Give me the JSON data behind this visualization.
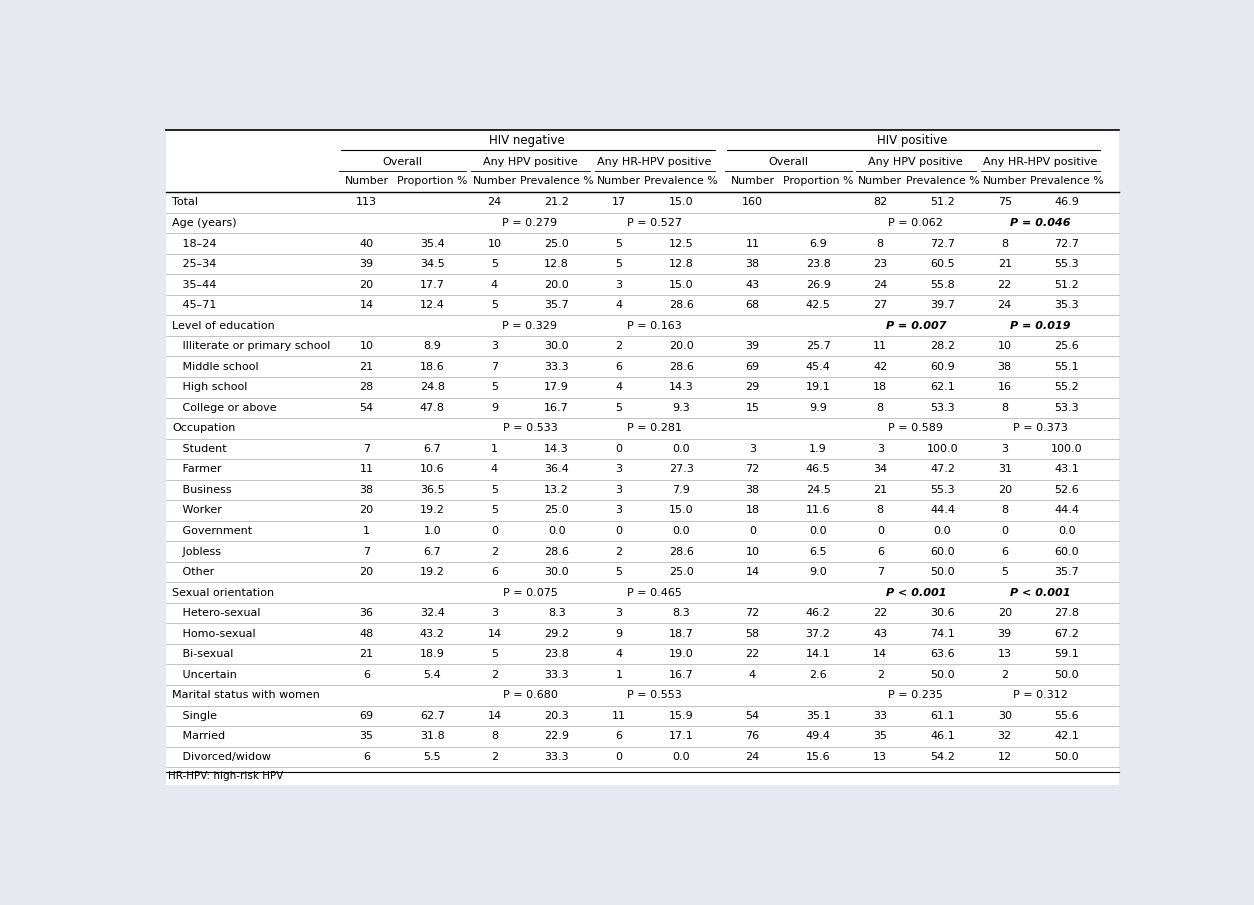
{
  "bg_color": "#e8e8f0",
  "title_hiv_neg": "HIV negative",
  "title_hiv_pos": "HIV positive",
  "col_headers": [
    "Number",
    "Proportion %",
    "Number",
    "Prevalence %",
    "Number",
    "Prevalence %",
    "Number",
    "Proportion %",
    "Number",
    "Prevalence %",
    "Number",
    "Prevalence %"
  ],
  "rows": [
    {
      "label": "Total",
      "is_section": false,
      "values": [
        "113",
        "",
        "24",
        "21.2",
        "17",
        "15.0",
        "160",
        "",
        "82",
        "51.2",
        "75",
        "46.9"
      ],
      "pval_cols": [],
      "pval_bold": []
    },
    {
      "label": "Age (years)",
      "is_section": true,
      "values": [
        "",
        "",
        "P = 0.279",
        "",
        "P = 0.527",
        "",
        "",
        "",
        "P = 0.062",
        "",
        "P = 0.046",
        ""
      ],
      "pval_cols": [
        2,
        4,
        8,
        10
      ],
      "pval_bold": [
        false,
        false,
        false,
        true
      ]
    },
    {
      "label": "   18–24",
      "is_section": false,
      "values": [
        "40",
        "35.4",
        "10",
        "25.0",
        "5",
        "12.5",
        "11",
        "6.9",
        "8",
        "72.7",
        "8",
        "72.7"
      ],
      "pval_cols": [],
      "pval_bold": []
    },
    {
      "label": "   25–34",
      "is_section": false,
      "values": [
        "39",
        "34.5",
        "5",
        "12.8",
        "5",
        "12.8",
        "38",
        "23.8",
        "23",
        "60.5",
        "21",
        "55.3"
      ],
      "pval_cols": [],
      "pval_bold": []
    },
    {
      "label": "   35–44",
      "is_section": false,
      "values": [
        "20",
        "17.7",
        "4",
        "20.0",
        "3",
        "15.0",
        "43",
        "26.9",
        "24",
        "55.8",
        "22",
        "51.2"
      ],
      "pval_cols": [],
      "pval_bold": []
    },
    {
      "label": "   45–71",
      "is_section": false,
      "values": [
        "14",
        "12.4",
        "5",
        "35.7",
        "4",
        "28.6",
        "68",
        "42.5",
        "27",
        "39.7",
        "24",
        "35.3"
      ],
      "pval_cols": [],
      "pval_bold": []
    },
    {
      "label": "Level of education",
      "is_section": true,
      "values": [
        "",
        "",
        "P = 0.329",
        "",
        "P = 0.163",
        "",
        "",
        "",
        "P = 0.007",
        "",
        "P = 0.019",
        ""
      ],
      "pval_cols": [
        2,
        4,
        8,
        10
      ],
      "pval_bold": [
        false,
        false,
        true,
        true
      ]
    },
    {
      "label": "   Illiterate or primary school",
      "is_section": false,
      "values": [
        "10",
        "8.9",
        "3",
        "30.0",
        "2",
        "20.0",
        "39",
        "25.7",
        "11",
        "28.2",
        "10",
        "25.6"
      ],
      "pval_cols": [],
      "pval_bold": []
    },
    {
      "label": "   Middle school",
      "is_section": false,
      "values": [
        "21",
        "18.6",
        "7",
        "33.3",
        "6",
        "28.6",
        "69",
        "45.4",
        "42",
        "60.9",
        "38",
        "55.1"
      ],
      "pval_cols": [],
      "pval_bold": []
    },
    {
      "label": "   High school",
      "is_section": false,
      "values": [
        "28",
        "24.8",
        "5",
        "17.9",
        "4",
        "14.3",
        "29",
        "19.1",
        "18",
        "62.1",
        "16",
        "55.2"
      ],
      "pval_cols": [],
      "pval_bold": []
    },
    {
      "label": "   College or above",
      "is_section": false,
      "values": [
        "54",
        "47.8",
        "9",
        "16.7",
        "5",
        "9.3",
        "15",
        "9.9",
        "8",
        "53.3",
        "8",
        "53.3"
      ],
      "pval_cols": [],
      "pval_bold": []
    },
    {
      "label": "Occupation",
      "is_section": true,
      "values": [
        "",
        "",
        "P = 0.533",
        "",
        "P = 0.281",
        "",
        "",
        "",
        "P = 0.589",
        "",
        "P = 0.373",
        ""
      ],
      "pval_cols": [
        2,
        4,
        8,
        10
      ],
      "pval_bold": [
        false,
        false,
        false,
        false
      ]
    },
    {
      "label": "   Student",
      "is_section": false,
      "values": [
        "7",
        "6.7",
        "1",
        "14.3",
        "0",
        "0.0",
        "3",
        "1.9",
        "3",
        "100.0",
        "3",
        "100.0"
      ],
      "pval_cols": [],
      "pval_bold": []
    },
    {
      "label": "   Farmer",
      "is_section": false,
      "values": [
        "11",
        "10.6",
        "4",
        "36.4",
        "3",
        "27.3",
        "72",
        "46.5",
        "34",
        "47.2",
        "31",
        "43.1"
      ],
      "pval_cols": [],
      "pval_bold": []
    },
    {
      "label": "   Business",
      "is_section": false,
      "values": [
        "38",
        "36.5",
        "5",
        "13.2",
        "3",
        "7.9",
        "38",
        "24.5",
        "21",
        "55.3",
        "20",
        "52.6"
      ],
      "pval_cols": [],
      "pval_bold": []
    },
    {
      "label": "   Worker",
      "is_section": false,
      "values": [
        "20",
        "19.2",
        "5",
        "25.0",
        "3",
        "15.0",
        "18",
        "11.6",
        "8",
        "44.4",
        "8",
        "44.4"
      ],
      "pval_cols": [],
      "pval_bold": []
    },
    {
      "label": "   Government",
      "is_section": false,
      "values": [
        "1",
        "1.0",
        "0",
        "0.0",
        "0",
        "0.0",
        "0",
        "0.0",
        "0",
        "0.0",
        "0",
        "0.0"
      ],
      "pval_cols": [],
      "pval_bold": []
    },
    {
      "label": "   Jobless",
      "is_section": false,
      "values": [
        "7",
        "6.7",
        "2",
        "28.6",
        "2",
        "28.6",
        "10",
        "6.5",
        "6",
        "60.0",
        "6",
        "60.0"
      ],
      "pval_cols": [],
      "pval_bold": []
    },
    {
      "label": "   Other",
      "is_section": false,
      "values": [
        "20",
        "19.2",
        "6",
        "30.0",
        "5",
        "25.0",
        "14",
        "9.0",
        "7",
        "50.0",
        "5",
        "35.7"
      ],
      "pval_cols": [],
      "pval_bold": []
    },
    {
      "label": "Sexual orientation",
      "is_section": true,
      "values": [
        "",
        "",
        "P = 0.075",
        "",
        "P = 0.465",
        "",
        "",
        "",
        "P < 0.001",
        "",
        "P < 0.001",
        ""
      ],
      "pval_cols": [
        2,
        4,
        8,
        10
      ],
      "pval_bold": [
        false,
        false,
        true,
        true
      ]
    },
    {
      "label": "   Hetero-sexual",
      "is_section": false,
      "values": [
        "36",
        "32.4",
        "3",
        "8.3",
        "3",
        "8.3",
        "72",
        "46.2",
        "22",
        "30.6",
        "20",
        "27.8"
      ],
      "pval_cols": [],
      "pval_bold": []
    },
    {
      "label": "   Homo-sexual",
      "is_section": false,
      "values": [
        "48",
        "43.2",
        "14",
        "29.2",
        "9",
        "18.7",
        "58",
        "37.2",
        "43",
        "74.1",
        "39",
        "67.2"
      ],
      "pval_cols": [],
      "pval_bold": []
    },
    {
      "label": "   Bi-sexual",
      "is_section": false,
      "values": [
        "21",
        "18.9",
        "5",
        "23.8",
        "4",
        "19.0",
        "22",
        "14.1",
        "14",
        "63.6",
        "13",
        "59.1"
      ],
      "pval_cols": [],
      "pval_bold": []
    },
    {
      "label": "   Uncertain",
      "is_section": false,
      "values": [
        "6",
        "5.4",
        "2",
        "33.3",
        "1",
        "16.7",
        "4",
        "2.6",
        "2",
        "50.0",
        "2",
        "50.0"
      ],
      "pval_cols": [],
      "pval_bold": []
    },
    {
      "label": "Marital status with women",
      "is_section": true,
      "values": [
        "",
        "",
        "P = 0.680",
        "",
        "P = 0.553",
        "",
        "",
        "",
        "P = 0.235",
        "",
        "P = 0.312",
        ""
      ],
      "pval_cols": [
        2,
        4,
        8,
        10
      ],
      "pval_bold": [
        false,
        false,
        false,
        false
      ]
    },
    {
      "label": "   Single",
      "is_section": false,
      "values": [
        "69",
        "62.7",
        "14",
        "20.3",
        "11",
        "15.9",
        "54",
        "35.1",
        "33",
        "61.1",
        "30",
        "55.6"
      ],
      "pval_cols": [],
      "pval_bold": []
    },
    {
      "label": "   Married",
      "is_section": false,
      "values": [
        "35",
        "31.8",
        "8",
        "22.9",
        "6",
        "17.1",
        "76",
        "49.4",
        "35",
        "46.1",
        "32",
        "42.1"
      ],
      "pval_cols": [],
      "pval_bold": []
    },
    {
      "label": "   Divorced/widow",
      "is_section": false,
      "values": [
        "6",
        "5.5",
        "2",
        "33.3",
        "0",
        "0.0",
        "24",
        "15.6",
        "13",
        "54.2",
        "12",
        "50.0"
      ],
      "pval_cols": [],
      "pval_bold": []
    }
  ],
  "footer": "HR-HPV: high-risk HPV"
}
